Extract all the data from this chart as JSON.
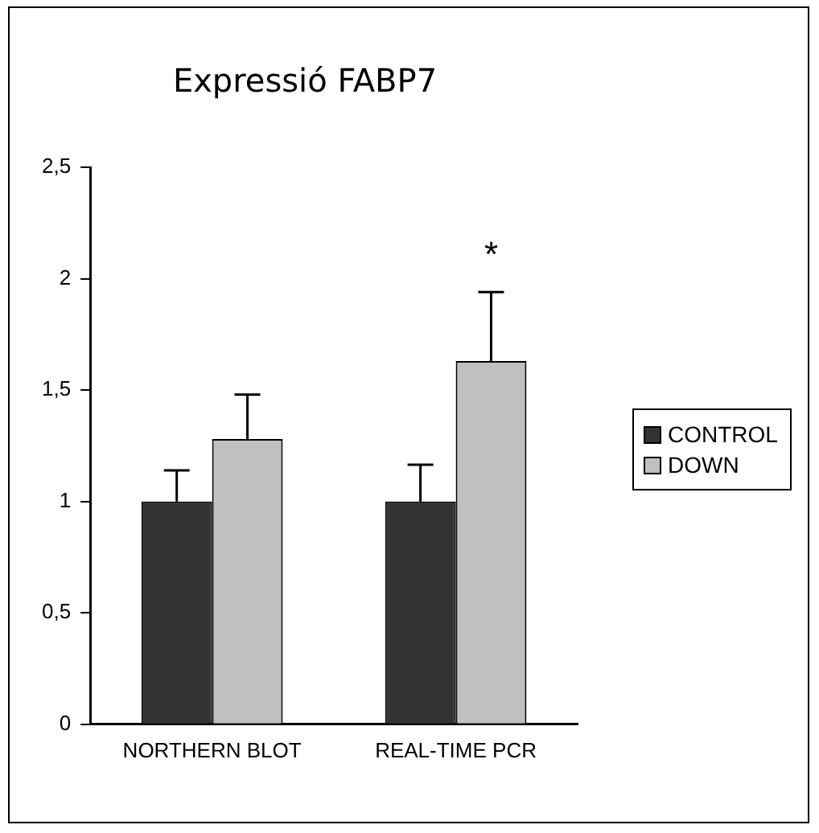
{
  "chart_data": {
    "type": "bar",
    "title": "Expressió FABP7",
    "categories": [
      "NORTHERN BLOT",
      "REAL-TIME PCR"
    ],
    "series": [
      {
        "name": "CONTROL",
        "color": "#333333",
        "values": [
          1,
          1
        ],
        "errors": [
          [
            1,
            1.14
          ],
          [
            1,
            1.165
          ]
        ]
      },
      {
        "name": "DOWN",
        "color": "#c0c0c0",
        "values": [
          1.28,
          1.63
        ],
        "errors": [
          [
            1.28,
            1.48
          ],
          [
            1.63,
            1.94
          ]
        ]
      }
    ],
    "ylim": [
      0,
      2.5
    ],
    "yticks": [
      0,
      {
        "value": 0.5,
        "label": "0,5"
      },
      1,
      {
        "value": 1.5,
        "label": "1,5"
      },
      2,
      {
        "value": 2.5,
        "label": "2,5"
      }
    ],
    "annotations": [
      "*"
    ],
    "grid": false,
    "legend": "right"
  }
}
